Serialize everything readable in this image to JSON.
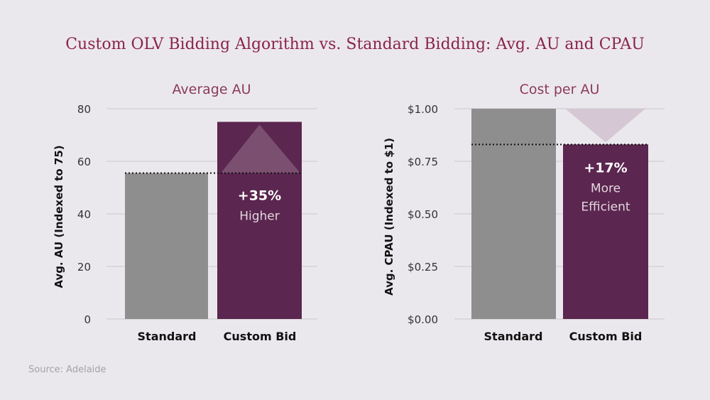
{
  "title": "Custom OLV Bidding Algorithm vs. Standard Bidding: Avg. AU and CPAU",
  "source": "Source: Adelaide",
  "colors": {
    "standard": "#8e8e8e",
    "custom": "#5b264f",
    "title": "#8a2447",
    "subtitle": "#8a3a5a",
    "grid": "#d6d3d8"
  },
  "chart_data": [
    {
      "type": "bar",
      "title": "Average AU",
      "ylabel": "Avg. AU (Indexed to 75)",
      "categories": [
        "Standard",
        "Custom Bid"
      ],
      "values": [
        55.5,
        75
      ],
      "ylim": [
        0,
        80
      ],
      "yticks": [
        0,
        20,
        40,
        60,
        80
      ],
      "ytick_labels": [
        "0",
        "20",
        "40",
        "60",
        "80"
      ],
      "grid": true,
      "annotation": {
        "value": "+35%",
        "label": "Higher",
        "arrow": "up"
      }
    },
    {
      "type": "bar",
      "title": "Cost per AU",
      "ylabel": "Avg. CPAU (Indexed to $1)",
      "categories": [
        "Standard",
        "Custom Bid"
      ],
      "values": [
        1.0,
        0.83
      ],
      "ylim": [
        0,
        1
      ],
      "yticks": [
        0,
        0.25,
        0.5,
        0.75,
        1.0
      ],
      "ytick_labels": [
        "$0.00",
        "$0.25",
        "$0.50",
        "$0.75",
        "$1.00"
      ],
      "grid": true,
      "annotation": {
        "value": "+17%",
        "label": "More Efficient",
        "label_lines": [
          "More",
          "Efficient"
        ],
        "arrow": "down"
      }
    }
  ]
}
